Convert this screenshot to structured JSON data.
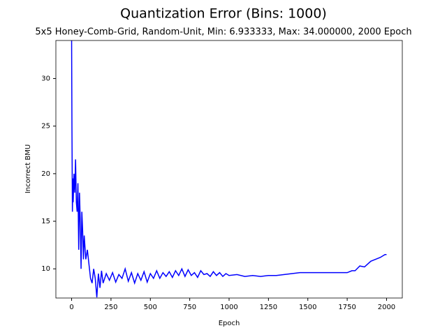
{
  "chart_data": {
    "type": "line",
    "title": "Quantization Error (Bins: 1000)",
    "subtitle": "5x5 Honey-Comb-Grid, Random-Unit, Min: 6.933333, Max: 34.000000, 2000 Epoch",
    "x_label": "Epoch",
    "y_label": "Incorrect BMU",
    "y_label_color": "#0000ff",
    "x": [
      0,
      2,
      5,
      8,
      10,
      15,
      20,
      25,
      30,
      35,
      40,
      45,
      50,
      55,
      60,
      65,
      70,
      75,
      80,
      90,
      100,
      110,
      120,
      130,
      140,
      150,
      160,
      170,
      180,
      190,
      200,
      220,
      240,
      260,
      280,
      300,
      320,
      340,
      360,
      380,
      400,
      420,
      440,
      460,
      480,
      500,
      520,
      540,
      560,
      580,
      600,
      620,
      640,
      660,
      680,
      700,
      720,
      740,
      760,
      780,
      800,
      820,
      840,
      860,
      880,
      900,
      920,
      940,
      960,
      980,
      1000,
      1050,
      1100,
      1150,
      1200,
      1250,
      1300,
      1350,
      1400,
      1450,
      1500,
      1550,
      1600,
      1650,
      1700,
      1750,
      1780,
      1800,
      1830,
      1860,
      1900,
      1930,
      1960,
      1990,
      2000
    ],
    "series": [
      {
        "name": "Incorrect BMU",
        "color": "#0000ff",
        "values": [
          34,
          25,
          16,
          19.5,
          17,
          20,
          18,
          21.5,
          17,
          16,
          19,
          12,
          18,
          15,
          10,
          16,
          14,
          11,
          13.5,
          11,
          12,
          10.5,
          9,
          8.5,
          10,
          9,
          7,
          9.5,
          8,
          9.8,
          8.5,
          9.5,
          8.8,
          9.6,
          8.6,
          9.4,
          9,
          10,
          8.7,
          9.6,
          8.5,
          9.5,
          8.8,
          9.7,
          8.6,
          9.5,
          9,
          9.8,
          9,
          9.6,
          9.2,
          9.7,
          9.1,
          9.8,
          9.3,
          10,
          9.2,
          9.9,
          9.3,
          9.6,
          9.1,
          9.8,
          9.4,
          9.5,
          9.2,
          9.7,
          9.3,
          9.6,
          9.2,
          9.5,
          9.3,
          9.4,
          9.2,
          9.3,
          9.2,
          9.3,
          9.3,
          9.4,
          9.5,
          9.6,
          9.6,
          9.6,
          9.6,
          9.6,
          9.6,
          9.6,
          9.8,
          9.8,
          10.3,
          10.2,
          10.8,
          11,
          11.2,
          11.5,
          11.5
        ]
      }
    ],
    "xlim": [
      -100,
      2100
    ],
    "ylim": [
      6.933333,
      34
    ],
    "xticks": [
      0,
      250,
      500,
      750,
      1000,
      1250,
      1500,
      1750,
      2000
    ],
    "yticks": [
      10,
      15,
      20,
      25,
      30
    ],
    "ytick_color": "#0000ff",
    "grid": false
  }
}
